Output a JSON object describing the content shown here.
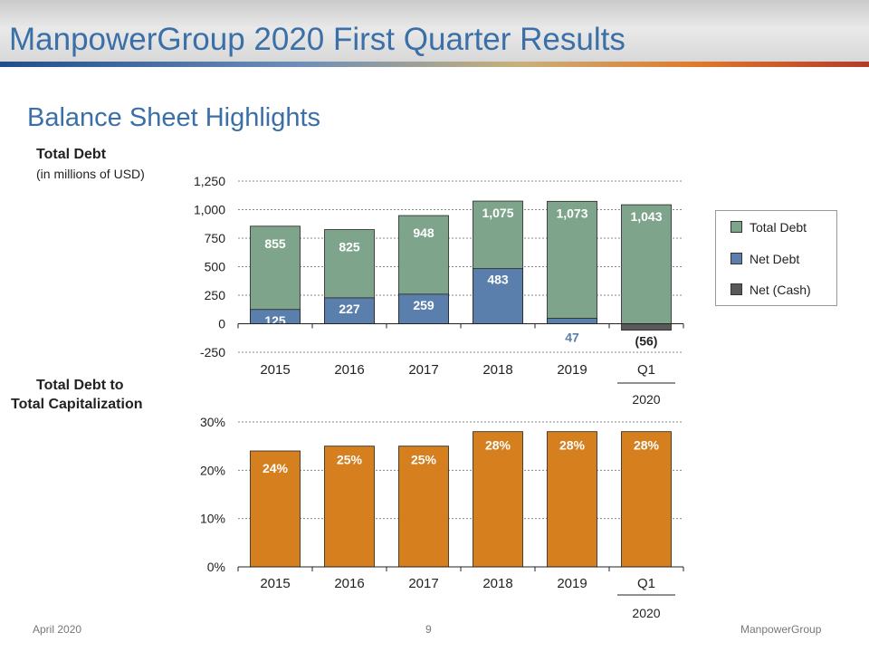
{
  "slide": {
    "title": "ManpowerGroup 2020 First Quarter Results",
    "subtitle": "Balance Sheet Highlights",
    "chart1_title": "Total Debt",
    "chart1_unit": "(in millions of USD)",
    "chart2_title_line1": "Total Debt to",
    "chart2_title_line2": "Total Capitalization"
  },
  "legend": {
    "items": [
      {
        "label": "Total Debt",
        "color": "#7ea58b"
      },
      {
        "label": "Net Debt",
        "color": "#5b7fad"
      },
      {
        "label": "Net (Cash)",
        "color": "#595959"
      }
    ]
  },
  "footer": {
    "left": "April 2020",
    "center": "9",
    "right": "ManpowerGroup"
  },
  "chart_data": [
    {
      "type": "bar",
      "title": "Total Debt",
      "categories": [
        "2015",
        "2016",
        "2017",
        "2018",
        "2019",
        "Q1"
      ],
      "group_label": "2020",
      "group_label_categories": [
        "Q1"
      ],
      "series": [
        {
          "name": "Total Debt",
          "values": [
            855,
            825,
            948,
            1075,
            1073,
            1043
          ],
          "labels": [
            "855",
            "825",
            "948",
            "1,075",
            "1,073",
            "1,043"
          ],
          "color": "#7ea58b"
        },
        {
          "name": "Net Debt",
          "values": [
            125,
            227,
            259,
            483,
            47,
            -56
          ],
          "labels": [
            "125",
            "227",
            "259",
            "483",
            "47",
            "(56)"
          ],
          "color": "#5b7fad",
          "negative_color": "#595959"
        }
      ],
      "ylim": [
        -250,
        1250
      ],
      "yticks": [
        -250,
        0,
        250,
        500,
        750,
        1000,
        1250
      ],
      "ytick_labels": [
        "-250",
        "0",
        "250",
        "500",
        "750",
        "1,000",
        "1,250"
      ],
      "grid": true,
      "legend_position": "right"
    },
    {
      "type": "bar",
      "title": "Total Debt to Total Capitalization",
      "categories": [
        "2015",
        "2016",
        "2017",
        "2018",
        "2019",
        "Q1"
      ],
      "group_label": "2020",
      "group_label_categories": [
        "Q1"
      ],
      "series": [
        {
          "name": "Total Debt to Total Capitalization",
          "values": [
            24,
            25,
            25,
            28,
            28,
            28
          ],
          "labels": [
            "24%",
            "25%",
            "25%",
            "28%",
            "28%",
            "28%"
          ],
          "color": "#d67f1f"
        }
      ],
      "ylim": [
        0,
        30
      ],
      "yticks": [
        0,
        10,
        20,
        30
      ],
      "ytick_labels": [
        "0%",
        "10%",
        "20%",
        "30%"
      ],
      "grid": true
    }
  ]
}
